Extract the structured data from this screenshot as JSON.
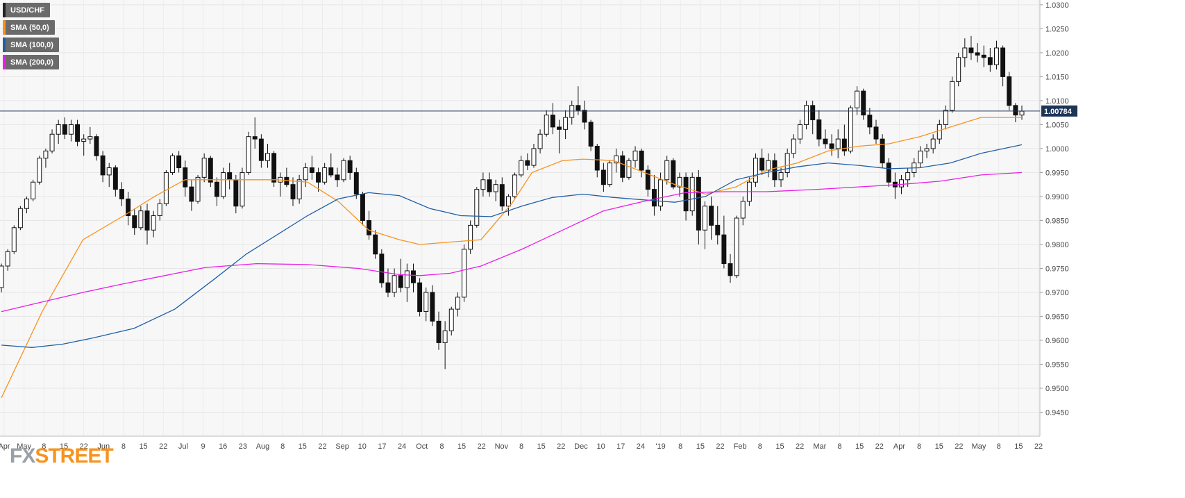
{
  "chart_data": {
    "type": "candlestick",
    "symbol": "USD/CHF",
    "last_price_label": "1.00784",
    "last_price": 1.00784,
    "ylim": [
      0.94,
      1.031
    ],
    "grid": true,
    "legend_placement": "top-left",
    "y_ticks": [
      "1.0300",
      "1.0250",
      "1.0200",
      "1.0150",
      "1.0100",
      "1.0050",
      "1.0000",
      "0.9950",
      "0.9900",
      "0.9850",
      "0.9800",
      "0.9750",
      "0.9700",
      "0.9650",
      "0.9600",
      "0.9550",
      "0.9500",
      "0.9450"
    ],
    "x_ticks": [
      "Apr",
      "May",
      "8",
      "15",
      "22",
      "Jun",
      "8",
      "15",
      "22",
      "Jul",
      "9",
      "16",
      "23",
      "Aug",
      "8",
      "15",
      "22",
      "Sep",
      "10",
      "17",
      "24",
      "Oct",
      "8",
      "15",
      "22",
      "Nov",
      "8",
      "15",
      "22",
      "Dec",
      "10",
      "17",
      "24",
      "'19",
      "8",
      "15",
      "22",
      "Feb",
      "8",
      "15",
      "22",
      "Mar",
      "8",
      "15",
      "22",
      "Apr",
      "8",
      "15",
      "22",
      "May",
      "8",
      "15",
      "22"
    ],
    "series": [
      {
        "name": "SMA (50,0)",
        "color": "#f7931e",
        "x": [
          0,
          0.04,
          0.08,
          0.12,
          0.15,
          0.18,
          0.22,
          0.27,
          0.3,
          0.33,
          0.36,
          0.39,
          0.41,
          0.44,
          0.47,
          0.5,
          0.52,
          0.55,
          0.57,
          0.6,
          0.63,
          0.66,
          0.69,
          0.72,
          0.75,
          0.78,
          0.81,
          0.84,
          0.87,
          0.9,
          0.93,
          0.96,
          1.0
        ],
        "y": [
          0.948,
          0.966,
          0.981,
          0.986,
          0.99,
          0.9935,
          0.9935,
          0.9935,
          0.993,
          0.989,
          0.983,
          0.981,
          0.98,
          0.9805,
          0.981,
          0.9885,
          0.995,
          0.9975,
          0.9978,
          0.9975,
          0.995,
          0.9925,
          0.9905,
          0.992,
          0.9955,
          0.997,
          0.9995,
          1.0005,
          1.001,
          1.0025,
          1.0045,
          1.0065,
          1.0065
        ]
      },
      {
        "name": "SMA (100,0)",
        "color": "#1f5fa8",
        "x": [
          0,
          0.03,
          0.06,
          0.09,
          0.13,
          0.17,
          0.21,
          0.24,
          0.27,
          0.3,
          0.33,
          0.36,
          0.39,
          0.42,
          0.45,
          0.48,
          0.51,
          0.54,
          0.57,
          0.6,
          0.63,
          0.66,
          0.69,
          0.72,
          0.75,
          0.78,
          0.81,
          0.84,
          0.87,
          0.9,
          0.93,
          0.96,
          1.0
        ],
        "y": [
          0.959,
          0.9585,
          0.9592,
          0.9605,
          0.9625,
          0.9665,
          0.973,
          0.978,
          0.982,
          0.986,
          0.9895,
          0.9908,
          0.9902,
          0.9875,
          0.986,
          0.9858,
          0.988,
          0.9898,
          0.9905,
          0.9898,
          0.9893,
          0.9888,
          0.99,
          0.9935,
          0.995,
          0.9962,
          0.997,
          0.9965,
          0.9958,
          0.996,
          0.997,
          0.999,
          1.0008
        ]
      },
      {
        "name": "SMA (200,0)",
        "color": "#e81ee8",
        "x": [
          0,
          0.04,
          0.08,
          0.12,
          0.16,
          0.2,
          0.25,
          0.3,
          0.35,
          0.39,
          0.41,
          0.44,
          0.47,
          0.51,
          0.55,
          0.59,
          0.63,
          0.67,
          0.71,
          0.75,
          0.8,
          0.84,
          0.88,
          0.92,
          0.96,
          1.0
        ],
        "y": [
          0.966,
          0.968,
          0.97,
          0.9718,
          0.9735,
          0.9752,
          0.976,
          0.9758,
          0.975,
          0.9737,
          0.9735,
          0.974,
          0.9755,
          0.979,
          0.983,
          0.987,
          0.989,
          0.9908,
          0.991,
          0.991,
          0.9915,
          0.992,
          0.9925,
          0.9932,
          0.9945,
          0.995
        ]
      }
    ],
    "candles_note": "",
    "candles": [
      [
        0.971,
        0.976,
        0.97,
        0.9755
      ],
      [
        0.9755,
        0.979,
        0.9745,
        0.9785
      ],
      [
        0.9785,
        0.984,
        0.978,
        0.9835
      ],
      [
        0.9835,
        0.988,
        0.983,
        0.9875
      ],
      [
        0.9875,
        0.99,
        0.9865,
        0.9895
      ],
      [
        0.9895,
        0.9935,
        0.989,
        0.993
      ],
      [
        0.993,
        0.9985,
        0.9925,
        0.998
      ],
      [
        0.998,
        1.0,
        0.996,
        0.9995
      ],
      [
        0.9995,
        1.004,
        0.999,
        1.003
      ],
      [
        1.003,
        1.006,
        1.001,
        1.005
      ],
      [
        1.005,
        1.0065,
        1.002,
        1.003
      ],
      [
        1.003,
        1.006,
        1.0015,
        1.005
      ],
      [
        1.005,
        1.006,
        1.0005,
        1.0015
      ],
      [
        1.0015,
        1.003,
        0.9985,
        1.002
      ],
      [
        1.002,
        1.0045,
        1.001,
        1.0025
      ],
      [
        1.0025,
        1.003,
        0.9975,
        0.9985
      ],
      [
        0.9985,
        0.9995,
        0.993,
        0.9945
      ],
      [
        0.9945,
        0.997,
        0.992,
        0.996
      ],
      [
        0.996,
        0.9965,
        0.99,
        0.9915
      ],
      [
        0.9915,
        0.993,
        0.988,
        0.9895
      ],
      [
        0.9895,
        0.991,
        0.984,
        0.986
      ],
      [
        0.986,
        0.9875,
        0.982,
        0.9835
      ],
      [
        0.9835,
        0.988,
        0.983,
        0.987
      ],
      [
        0.987,
        0.9885,
        0.98,
        0.983
      ],
      [
        0.983,
        0.987,
        0.9815,
        0.986
      ],
      [
        0.986,
        0.9895,
        0.985,
        0.9885
      ],
      [
        0.9885,
        0.9955,
        0.988,
        0.995
      ],
      [
        0.995,
        0.999,
        0.9945,
        0.9985
      ],
      [
        0.9985,
        0.9995,
        0.995,
        0.996
      ],
      [
        0.996,
        0.9975,
        0.99,
        0.992
      ],
      [
        0.992,
        0.9935,
        0.987,
        0.989
      ],
      [
        0.989,
        0.9945,
        0.9885,
        0.994
      ],
      [
        0.994,
        0.999,
        0.993,
        0.998
      ],
      [
        0.998,
        0.9985,
        0.992,
        0.993
      ],
      [
        0.993,
        0.994,
        0.988,
        0.99
      ],
      [
        0.99,
        0.996,
        0.9895,
        0.995
      ],
      [
        0.995,
        0.997,
        0.9915,
        0.9935
      ],
      [
        0.9935,
        0.9945,
        0.9865,
        0.988
      ],
      [
        0.988,
        0.996,
        0.9875,
        0.995
      ],
      [
        0.995,
        1.0035,
        0.9945,
        1.0025
      ],
      [
        1.0025,
        1.0065,
        1.0,
        1.002
      ],
      [
        1.002,
        1.003,
        0.996,
        0.9975
      ],
      [
        0.9975,
        1.001,
        0.996,
        0.999
      ],
      [
        0.999,
        0.9995,
        0.992,
        0.993
      ],
      [
        0.993,
        0.995,
        0.99,
        0.994
      ],
      [
        0.994,
        0.996,
        0.992,
        0.9925
      ],
      [
        0.9925,
        0.994,
        0.988,
        0.9895
      ],
      [
        0.9895,
        0.9945,
        0.9885,
        0.9935
      ],
      [
        0.9935,
        0.997,
        0.992,
        0.996
      ],
      [
        0.996,
        0.9985,
        0.9935,
        0.995
      ],
      [
        0.995,
        0.996,
        0.991,
        0.993
      ],
      [
        0.993,
        0.997,
        0.9925,
        0.996
      ],
      [
        0.996,
        0.999,
        0.994,
        0.9945
      ],
      [
        0.9945,
        0.996,
        0.992,
        0.9935
      ],
      [
        0.9935,
        0.998,
        0.993,
        0.9975
      ],
      [
        0.9975,
        0.9985,
        0.9935,
        0.995
      ],
      [
        0.995,
        0.996,
        0.9895,
        0.9905
      ],
      [
        0.9905,
        0.991,
        0.984,
        0.985
      ],
      [
        0.985,
        0.987,
        0.981,
        0.982
      ],
      [
        0.982,
        0.983,
        0.977,
        0.978
      ],
      [
        0.978,
        0.979,
        0.971,
        0.972
      ],
      [
        0.972,
        0.975,
        0.969,
        0.97
      ],
      [
        0.97,
        0.975,
        0.969,
        0.9735
      ],
      [
        0.9735,
        0.977,
        0.97,
        0.971
      ],
      [
        0.971,
        0.976,
        0.968,
        0.9745
      ],
      [
        0.9745,
        0.976,
        0.97,
        0.972
      ],
      [
        0.972,
        0.973,
        0.965,
        0.966
      ],
      [
        0.966,
        0.971,
        0.964,
        0.97
      ],
      [
        0.97,
        0.9715,
        0.963,
        0.964
      ],
      [
        0.964,
        0.966,
        0.958,
        0.9595
      ],
      [
        0.9595,
        0.964,
        0.954,
        0.962
      ],
      [
        0.962,
        0.967,
        0.961,
        0.9665
      ],
      [
        0.9665,
        0.97,
        0.965,
        0.969
      ],
      [
        0.969,
        0.98,
        0.968,
        0.979
      ],
      [
        0.979,
        0.985,
        0.978,
        0.984
      ],
      [
        0.984,
        0.992,
        0.9835,
        0.9915
      ],
      [
        0.9915,
        0.995,
        0.99,
        0.9935
      ],
      [
        0.9935,
        0.995,
        0.99,
        0.991
      ],
      [
        0.991,
        0.9935,
        0.989,
        0.9925
      ],
      [
        0.9925,
        0.994,
        0.987,
        0.988
      ],
      [
        0.988,
        0.9905,
        0.986,
        0.99
      ],
      [
        0.99,
        0.995,
        0.9895,
        0.9945
      ],
      [
        0.9945,
        0.9985,
        0.994,
        0.9975
      ],
      [
        0.9975,
        0.999,
        0.9955,
        0.9965
      ],
      [
        0.9965,
        1.001,
        0.996,
        1.0
      ],
      [
        1.0,
        1.004,
        0.999,
        1.003
      ],
      [
        1.003,
        1.008,
        1.0025,
        1.007
      ],
      [
        1.007,
        1.0095,
        1.003,
        1.0045
      ],
      [
        1.0045,
        1.006,
        0.999,
        1.004
      ],
      [
        1.004,
        1.008,
        1.002,
        1.0065
      ],
      [
        1.0065,
        1.01,
        1.005,
        1.009
      ],
      [
        1.009,
        1.013,
        1.007,
        1.008
      ],
      [
        1.008,
        1.01,
        1.004,
        1.0055
      ],
      [
        1.0055,
        1.006,
        0.9995,
        1.0005
      ],
      [
        1.0005,
        1.001,
        0.994,
        0.9955
      ],
      [
        0.9955,
        0.997,
        0.991,
        0.9925
      ],
      [
        0.9925,
        0.9975,
        0.992,
        0.997
      ],
      [
        0.997,
        1.0,
        0.995,
        0.9985
      ],
      [
        0.9985,
        0.9995,
        0.993,
        0.994
      ],
      [
        0.994,
        0.998,
        0.9935,
        0.9975
      ],
      [
        0.9975,
        1.0005,
        0.996,
        0.9995
      ],
      [
        0.9995,
        1.0,
        0.994,
        0.9955
      ],
      [
        0.9955,
        0.9965,
        0.99,
        0.9915
      ],
      [
        0.9915,
        0.9945,
        0.986,
        0.988
      ],
      [
        0.988,
        0.995,
        0.987,
        0.9935
      ],
      [
        0.9935,
        0.9985,
        0.9925,
        0.9975
      ],
      [
        0.9975,
        0.998,
        0.9915,
        0.992
      ],
      [
        0.992,
        0.995,
        0.99,
        0.994
      ],
      [
        0.994,
        0.995,
        0.985,
        0.987
      ],
      [
        0.987,
        0.995,
        0.986,
        0.994
      ],
      [
        0.994,
        0.9955,
        0.98,
        0.983
      ],
      [
        0.983,
        0.989,
        0.979,
        0.988
      ],
      [
        0.988,
        0.99,
        0.981,
        0.984
      ],
      [
        0.984,
        0.988,
        0.98,
        0.982
      ],
      [
        0.982,
        0.986,
        0.975,
        0.976
      ],
      [
        0.976,
        0.978,
        0.972,
        0.9735
      ],
      [
        0.9735,
        0.986,
        0.973,
        0.9855
      ],
      [
        0.9855,
        0.99,
        0.984,
        0.989
      ],
      [
        0.989,
        0.994,
        0.988,
        0.993
      ],
      [
        0.993,
        0.999,
        0.992,
        0.998
      ],
      [
        0.998,
        1.0,
        0.9945,
        0.9955
      ],
      [
        0.9955,
        0.999,
        0.994,
        0.9975
      ],
      [
        0.9975,
        0.999,
        0.992,
        0.9935
      ],
      [
        0.9935,
        0.996,
        0.992,
        0.995
      ],
      [
        0.995,
        1.0,
        0.994,
        0.999
      ],
      [
        0.999,
        1.003,
        0.998,
        1.002
      ],
      [
        1.002,
        1.006,
        1.001,
        1.005
      ],
      [
        1.005,
        1.01,
        1.004,
        1.009
      ],
      [
        1.009,
        1.01,
        1.003,
        1.006
      ],
      [
        1.006,
        1.008,
        1.0005,
        1.002
      ],
      [
        1.002,
        1.004,
        1.0,
        1.001
      ],
      [
        1.001,
        1.003,
        0.9985,
        1.0
      ],
      [
        1.0,
        1.004,
        0.998,
        1.002
      ],
      [
        1.002,
        1.005,
        0.9985,
        0.9995
      ],
      [
        0.9995,
        1.009,
        0.999,
        1.0085
      ],
      [
        1.0085,
        1.013,
        1.007,
        1.012
      ],
      [
        1.012,
        1.0125,
        1.006,
        1.007
      ],
      [
        1.007,
        1.0085,
        1.003,
        1.0045
      ],
      [
        1.0045,
        1.006,
        1.001,
        1.002
      ],
      [
        1.002,
        1.003,
        0.996,
        0.997
      ],
      [
        0.997,
        0.998,
        0.992,
        0.993
      ],
      [
        0.993,
        0.995,
        0.9895,
        0.992
      ],
      [
        0.992,
        0.9945,
        0.9905,
        0.9935
      ],
      [
        0.9935,
        0.996,
        0.992,
        0.995
      ],
      [
        0.995,
        0.998,
        0.994,
        0.997
      ],
      [
        0.997,
        1.0005,
        0.996,
        0.9995
      ],
      [
        0.9995,
        1.001,
        0.998,
        1.0
      ],
      [
        1.0,
        1.003,
        0.999,
        1.002
      ],
      [
        1.002,
        1.006,
        1.001,
        1.005
      ],
      [
        1.005,
        1.009,
        1.004,
        1.008
      ],
      [
        1.008,
        1.015,
        1.0075,
        1.014
      ],
      [
        1.014,
        1.02,
        1.013,
        1.019
      ],
      [
        1.019,
        1.023,
        1.017,
        1.021
      ],
      [
        1.021,
        1.0235,
        1.0185,
        1.02
      ],
      [
        1.02,
        1.022,
        1.018,
        1.0195
      ],
      [
        1.0195,
        1.0215,
        1.017,
        1.019
      ],
      [
        1.019,
        1.021,
        1.016,
        1.0175
      ],
      [
        1.0175,
        1.0225,
        1.0165,
        1.021
      ],
      [
        1.021,
        1.0215,
        1.013,
        1.015
      ],
      [
        1.015,
        1.016,
        1.008,
        1.009
      ],
      [
        1.009,
        1.0095,
        1.0055,
        1.007
      ],
      [
        1.007,
        1.009,
        1.006,
        1.0078
      ]
    ]
  },
  "legend": [
    {
      "label": "USD/CHF",
      "color": "#222222"
    },
    {
      "label": "SMA (50,0)",
      "color": "#f7931e"
    },
    {
      "label": "SMA (100,0)",
      "color": "#1f5fa8"
    },
    {
      "label": "SMA (200,0)",
      "color": "#e81ee8"
    }
  ],
  "logo": {
    "part1": "FX",
    "part2": "STREET"
  }
}
